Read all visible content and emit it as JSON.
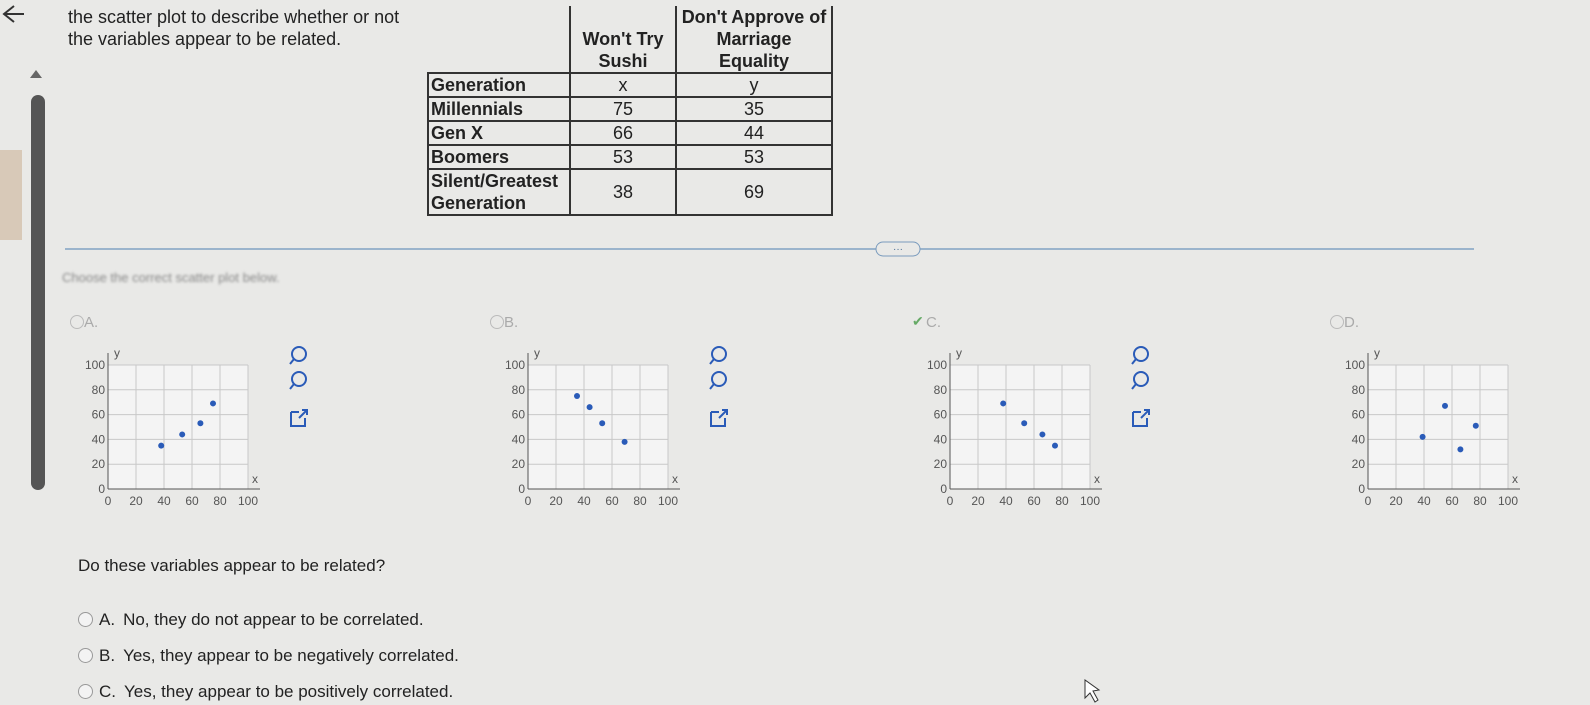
{
  "question": {
    "text": "the scatter plot to describe whether or not the variables appear to be related."
  },
  "table": {
    "header": [
      "Generation",
      "Won't Try Sushi",
      "Don't Approve of Marriage Equality"
    ],
    "subheader": [
      "x",
      "y"
    ],
    "rows": [
      [
        "Millennials",
        75,
        35
      ],
      [
        "Gen X",
        66,
        44
      ],
      [
        "Boomers",
        53,
        53
      ],
      [
        "Silent/Greatest Generation",
        38,
        69
      ]
    ]
  },
  "instruction": "Choose the correct scatter plot below.",
  "plots": {
    "axis_labels": {
      "x": "x",
      "y": "y"
    },
    "lim": [
      0,
      100
    ],
    "ticks": [
      0,
      20,
      40,
      60,
      80,
      100
    ],
    "options": [
      {
        "label": "A.",
        "selected": false,
        "points": [
          [
            38,
            35
          ],
          [
            53,
            44
          ],
          [
            66,
            53
          ],
          [
            75,
            69
          ]
        ]
      },
      {
        "label": "B.",
        "selected": false,
        "points": [
          [
            35,
            75
          ],
          [
            44,
            66
          ],
          [
            53,
            53
          ],
          [
            69,
            38
          ]
        ]
      },
      {
        "label": "C.",
        "selected": true,
        "points": [
          [
            38,
            69
          ],
          [
            53,
            53
          ],
          [
            66,
            44
          ],
          [
            75,
            35
          ]
        ]
      },
      {
        "label": "D.",
        "selected": false,
        "points": [
          [
            39,
            42
          ],
          [
            55,
            67
          ],
          [
            66,
            32
          ],
          [
            77,
            51
          ]
        ]
      }
    ]
  },
  "related": {
    "question": "Do these variables appear to be related?",
    "choices": [
      {
        "letter": "A.",
        "text": "No, they do not appear to be correlated."
      },
      {
        "letter": "B.",
        "text": "Yes, they appear to be negatively correlated."
      },
      {
        "letter": "C.",
        "text": "Yes, they appear to be positively correlated."
      }
    ]
  }
}
